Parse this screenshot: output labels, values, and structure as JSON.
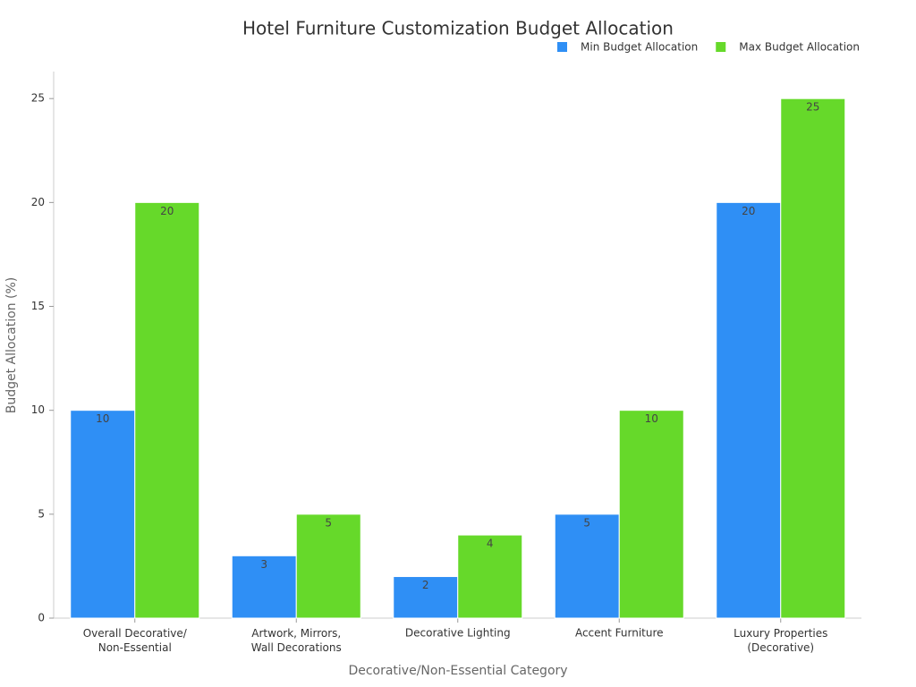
{
  "chart_data": {
    "type": "bar",
    "title": "Hotel Furniture Customization Budget Allocation",
    "x_label": "Decorative/Non-Essential Category",
    "y_label": "Budget Allocation (%)",
    "categories": [
      "Overall Decorative/\nNon-Essential",
      "Artwork, Mirrors,\nWall Decorations",
      "Decorative Lighting",
      "Accent Furniture",
      "Luxury Properties\n(Decorative)"
    ],
    "series": [
      {
        "name": "Min Budget Allocation",
        "color": "#2f8ff5",
        "values": [
          10,
          3,
          2,
          5,
          20
        ]
      },
      {
        "name": "Max Budget Allocation",
        "color": "#66d92a",
        "values": [
          20,
          5,
          4,
          10,
          25
        ]
      }
    ],
    "ylim": [
      0,
      26.3
    ],
    "yticks": [
      0,
      5,
      10,
      15,
      20,
      25
    ],
    "grid": false,
    "legend": "top-right"
  }
}
